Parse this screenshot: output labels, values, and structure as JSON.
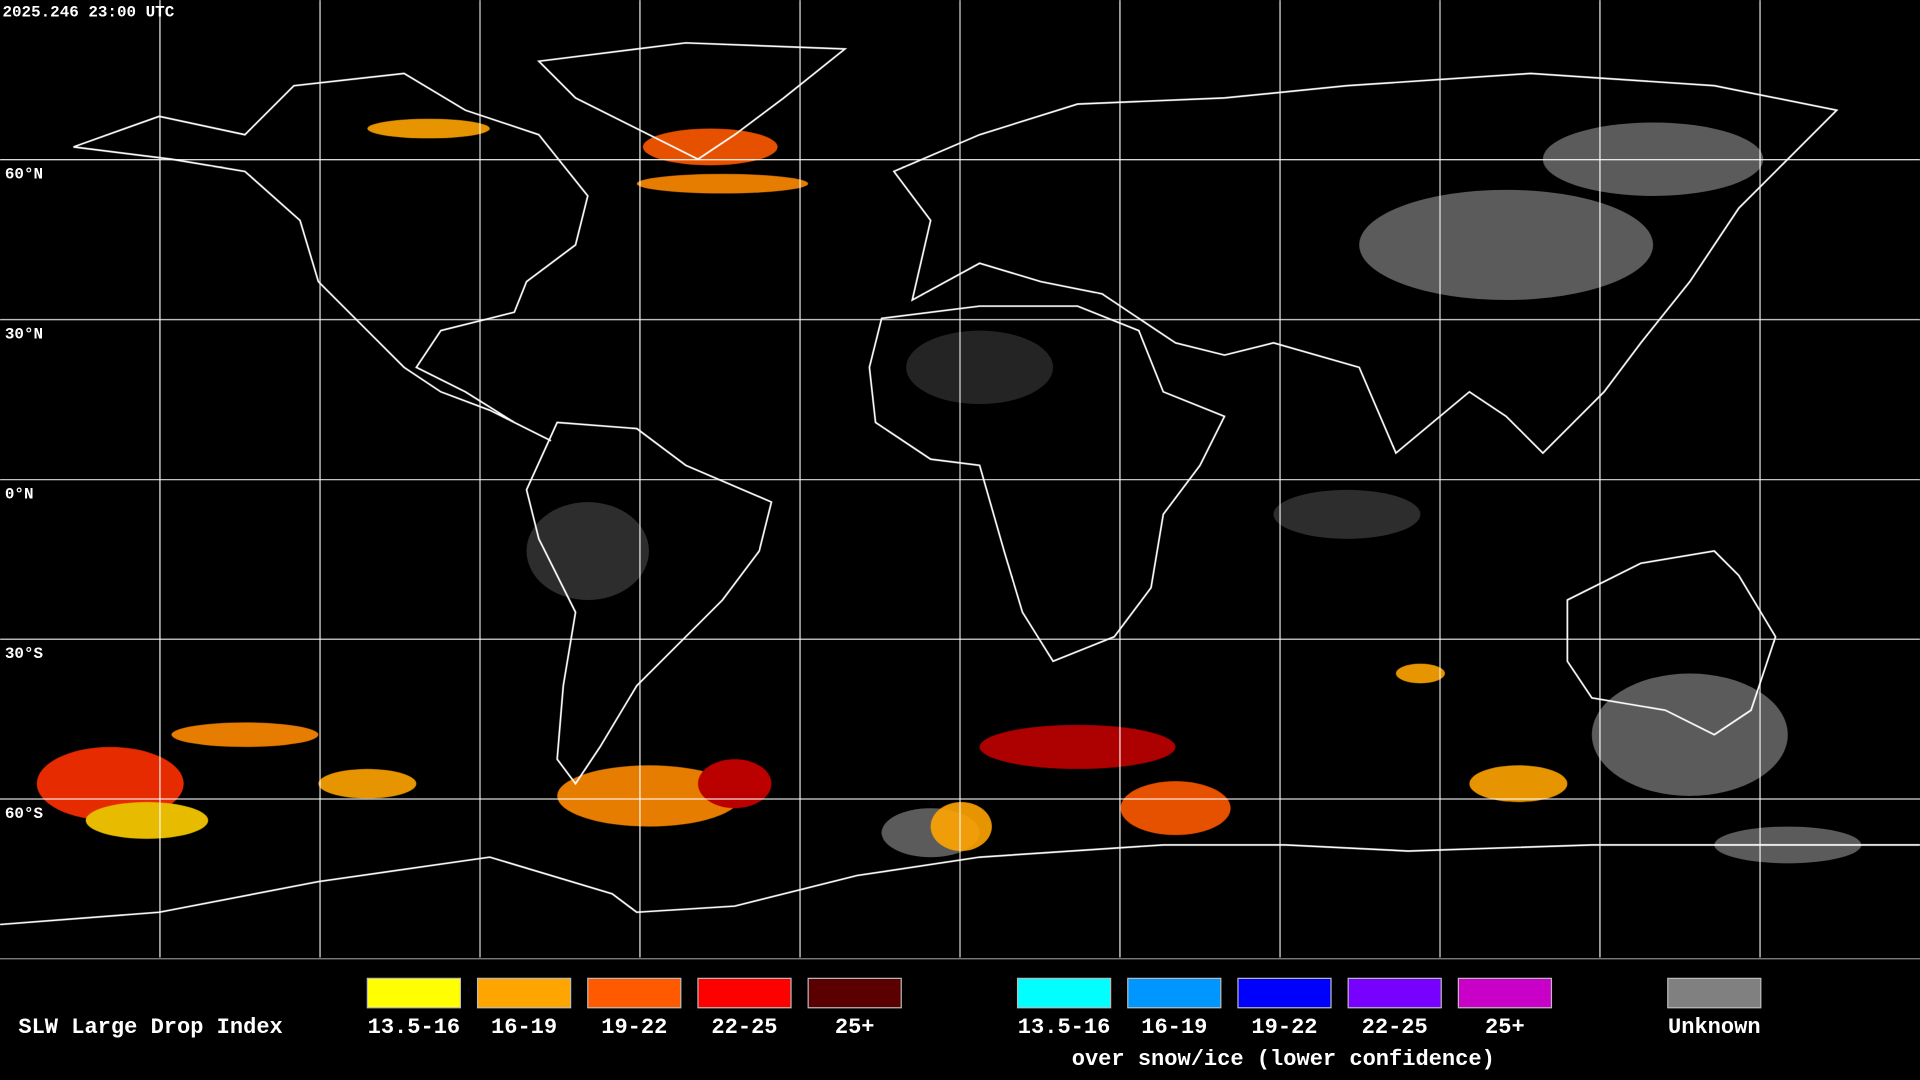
{
  "header": {
    "timestamp": "2025.246 23:00 UTC"
  },
  "map": {
    "latitude_labels": [
      "60°N",
      "30°N",
      "0°N",
      "30°S",
      "60°S"
    ]
  },
  "legend": {
    "title": "SLW Large Drop Index",
    "groups": [
      {
        "items": [
          {
            "label": "13.5-16",
            "color": "#ffff00"
          },
          {
            "label": "16-19",
            "color": "#ffa500"
          },
          {
            "label": "19-22",
            "color": "#ff5a00"
          },
          {
            "label": "22-25",
            "color": "#ff0000"
          },
          {
            "label": "25+",
            "color": "#5a0000"
          }
        ]
      },
      {
        "items": [
          {
            "label": "13.5-16",
            "color": "#00ffff"
          },
          {
            "label": "16-19",
            "color": "#0096ff"
          },
          {
            "label": "19-22",
            "color": "#0000ff"
          },
          {
            "label": "22-25",
            "color": "#7800ff"
          },
          {
            "label": "25+",
            "color": "#c800c8"
          }
        ],
        "caption": "over snow/ice (lower confidence)"
      }
    ],
    "unknown": {
      "label": "Unknown",
      "color": "#808080"
    }
  }
}
